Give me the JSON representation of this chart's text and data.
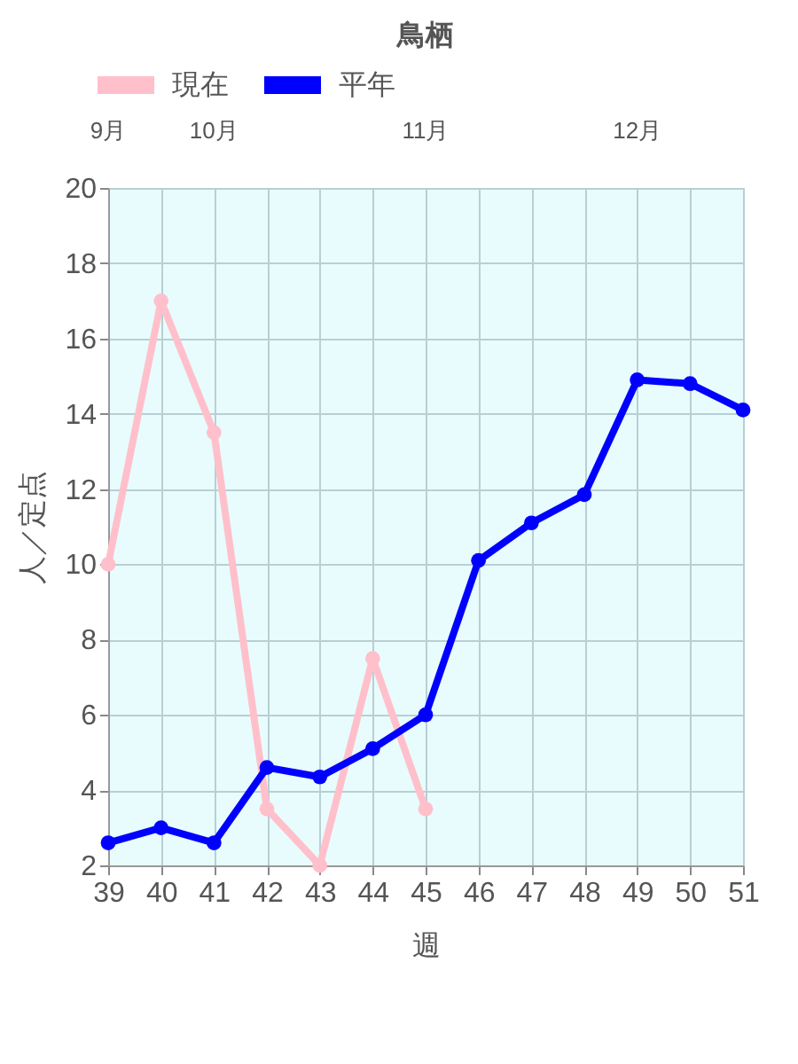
{
  "chart_data": {
    "type": "line",
    "title": "鳥栖",
    "xlabel": "週",
    "ylabel": "人／定点",
    "x": [
      39,
      40,
      41,
      42,
      43,
      44,
      45,
      46,
      47,
      48,
      49,
      50,
      51
    ],
    "xlim": [
      39,
      51
    ],
    "xticks": [
      39,
      40,
      41,
      42,
      43,
      44,
      45,
      46,
      47,
      48,
      49,
      50,
      51
    ],
    "annotations": [
      "9月",
      "10月",
      "11月",
      "12月"
    ],
    "ylim": [
      2,
      20
    ],
    "yticks": [
      2,
      4,
      6,
      8,
      10,
      12,
      14,
      16,
      18,
      20
    ],
    "series": [
      {
        "name": "現在",
        "color": "#ffc0cb",
        "values": [
          10,
          17,
          13.5,
          3.5,
          2,
          7.5,
          3.5,
          null,
          null,
          null,
          null,
          null,
          null
        ]
      },
      {
        "name": "平年",
        "color": "#0000ff",
        "values": [
          2.6,
          3.0,
          2.6,
          4.6,
          4.35,
          5.1,
          6.0,
          10.1,
          11.1,
          11.85,
          14.9,
          14.8,
          14.1
        ]
      }
    ],
    "grid": true,
    "legend": "top",
    "marker": "circle",
    "line_style": "solid"
  }
}
